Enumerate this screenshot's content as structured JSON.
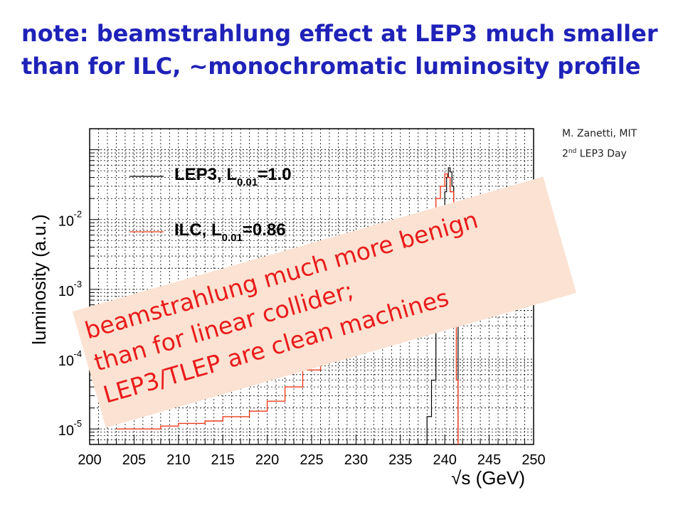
{
  "slide": {
    "title_line1": "note: beamstrahlung effect at LEP3 much smaller",
    "title_line2": "than for ILC, ~monochromatic luminosity profile",
    "credit_line1": "M. Zanetti, MIT",
    "credit_line2_num": "2",
    "credit_line2_sup": "nd",
    "credit_line2_rest": " LEP3 Day",
    "callout_line1": "beamstrahlung much more benign",
    "callout_line2": "than for linear collider;",
    "callout_line3": "LEP3/TLEP are clean machines"
  },
  "chart_data": {
    "type": "line",
    "xlabel": "√s (GeV)",
    "ylabel": "luminosity (a.u.)",
    "xlim": [
      200,
      250
    ],
    "ylim": [
      6e-06,
      0.2
    ],
    "yscale": "log",
    "x_ticks": [
      200,
      205,
      210,
      215,
      220,
      225,
      230,
      235,
      240,
      245,
      250
    ],
    "x_tick_labels": [
      "200",
      "205",
      "210",
      "215",
      "220",
      "225",
      "230",
      "235",
      "240",
      "245",
      "250"
    ],
    "y_ticks": [
      1e-05,
      0.0001,
      0.001,
      0.01
    ],
    "y_tick_labels": [
      {
        "base": "10",
        "exp": "-5"
      },
      {
        "base": "10",
        "exp": "-4"
      },
      {
        "base": "10",
        "exp": "-3"
      },
      {
        "base": "10",
        "exp": "-2"
      }
    ],
    "grid": true,
    "legend_position": "top-left",
    "series": [
      {
        "name": "LEP3",
        "legend_text": "LEP3, L",
        "legend_sub": "0.01",
        "legend_val": "=1.0",
        "color": "#000000",
        "x": [
          236.5,
          237.5,
          238.0,
          238.5,
          239.0,
          239.3,
          239.6,
          239.8,
          240.0,
          240.2,
          240.4,
          240.6,
          240.8,
          241.0,
          241.2,
          241.5
        ],
        "y": [
          4e-06,
          6e-06,
          1.5e-05,
          5e-05,
          0.0003,
          0.001,
          0.004,
          0.012,
          0.025,
          0.04,
          0.055,
          0.048,
          0.03,
          0.01,
          0.0015,
          4e-06
        ]
      },
      {
        "name": "ILC",
        "legend_text": "ILC, L",
        "legend_sub": "0.01",
        "legend_val": "=0.86",
        "color": "#f03a1c",
        "x": [
          203,
          205,
          208,
          210,
          213,
          215,
          218,
          220,
          222,
          224,
          226,
          228,
          230,
          232,
          234,
          236,
          237,
          238,
          238.5,
          239,
          239.5,
          240,
          240.3,
          240.6,
          241.0,
          241.3,
          241.5
        ],
        "y": [
          1e-05,
          1e-05,
          1.1e-05,
          1.2e-05,
          1.3e-05,
          1.5e-05,
          1.8e-05,
          2.5e-05,
          4e-05,
          7e-05,
          0.00012,
          0.0002,
          0.0004,
          0.0009,
          0.0018,
          0.0035,
          0.005,
          0.008,
          0.012,
          0.02,
          0.03,
          0.045,
          0.04,
          0.025,
          0.004,
          5e-05,
          4e-06
        ]
      }
    ]
  }
}
